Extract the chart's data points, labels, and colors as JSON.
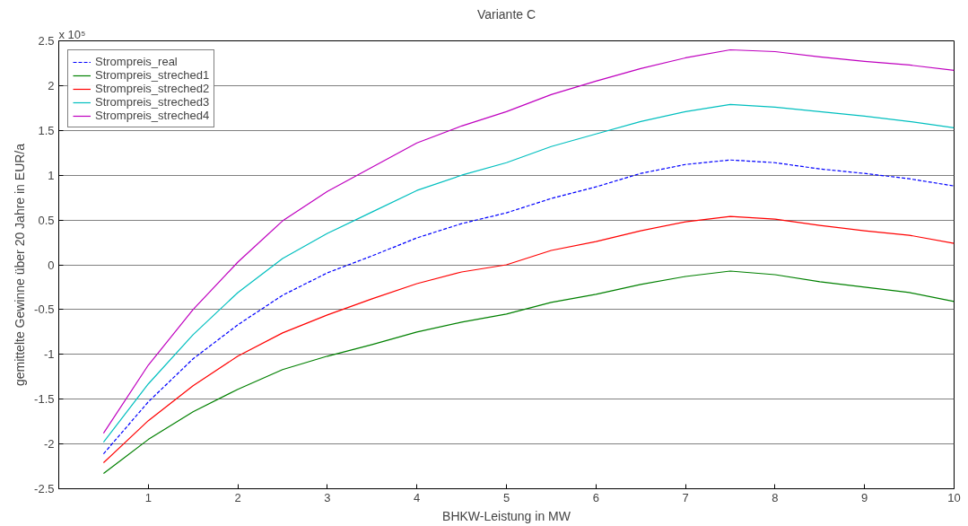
{
  "chart_data": {
    "type": "line",
    "title": "Variante C",
    "xlabel": "BHKW-Leistung in MW",
    "ylabel": "gemittelte Gewinne über 20 Jahre in EUR/a",
    "annotations": [
      "x 10⁵"
    ],
    "x": [
      0.5,
      1,
      1.5,
      2,
      2.5,
      3,
      3.5,
      4,
      4.5,
      5,
      5.5,
      6,
      6.5,
      7,
      7.5,
      8,
      8.5,
      9,
      9.5,
      10
    ],
    "series": [
      {
        "name": "Strompreis_real",
        "color": "#0000ff",
        "line_style": "dashed",
        "values": [
          -2.11,
          -1.53,
          -1.05,
          -0.67,
          -0.34,
          -0.09,
          0.1,
          0.3,
          0.46,
          0.58,
          0.74,
          0.87,
          1.02,
          1.12,
          1.17,
          1.14,
          1.07,
          1.02,
          0.96,
          0.88
        ]
      },
      {
        "name": "Strompreis_streched1",
        "color": "#008000",
        "line_style": "solid",
        "values": [
          -2.33,
          -1.95,
          -1.64,
          -1.39,
          -1.17,
          -1.02,
          -0.89,
          -0.75,
          -0.64,
          -0.55,
          -0.42,
          -0.33,
          -0.22,
          -0.13,
          -0.07,
          -0.11,
          -0.19,
          -0.25,
          -0.31,
          -0.41
        ]
      },
      {
        "name": "Strompreis_streched2",
        "color": "#ff0000",
        "line_style": "solid",
        "values": [
          -2.21,
          -1.74,
          -1.35,
          -1.02,
          -0.76,
          -0.56,
          -0.38,
          -0.21,
          -0.08,
          0.0,
          0.16,
          0.26,
          0.38,
          0.48,
          0.54,
          0.51,
          0.44,
          0.38,
          0.33,
          0.24
        ]
      },
      {
        "name": "Strompreis_streched3",
        "color": "#00bfbf",
        "line_style": "solid",
        "values": [
          -1.98,
          -1.33,
          -0.78,
          -0.31,
          0.07,
          0.35,
          0.59,
          0.83,
          1.0,
          1.14,
          1.32,
          1.46,
          1.6,
          1.71,
          1.79,
          1.76,
          1.71,
          1.66,
          1.6,
          1.53
        ]
      },
      {
        "name": "Strompreis_streched4",
        "color": "#bf00bf",
        "line_style": "solid",
        "values": [
          -1.88,
          -1.12,
          -0.5,
          0.03,
          0.49,
          0.82,
          1.09,
          1.36,
          1.55,
          1.71,
          1.9,
          2.05,
          2.19,
          2.31,
          2.4,
          2.38,
          2.32,
          2.27,
          2.23,
          2.17
        ]
      }
    ],
    "xlim": [
      0,
      10
    ],
    "xticks": [
      1,
      2,
      3,
      4,
      5,
      6,
      7,
      8,
      9,
      10
    ],
    "ylim": [
      -2.5,
      2.5
    ],
    "yticks": [
      -2.5,
      -2,
      -1.5,
      -1,
      -0.5,
      0,
      0.5,
      1,
      1.5,
      2,
      2.5
    ],
    "grid": "y",
    "legend": "top left"
  }
}
